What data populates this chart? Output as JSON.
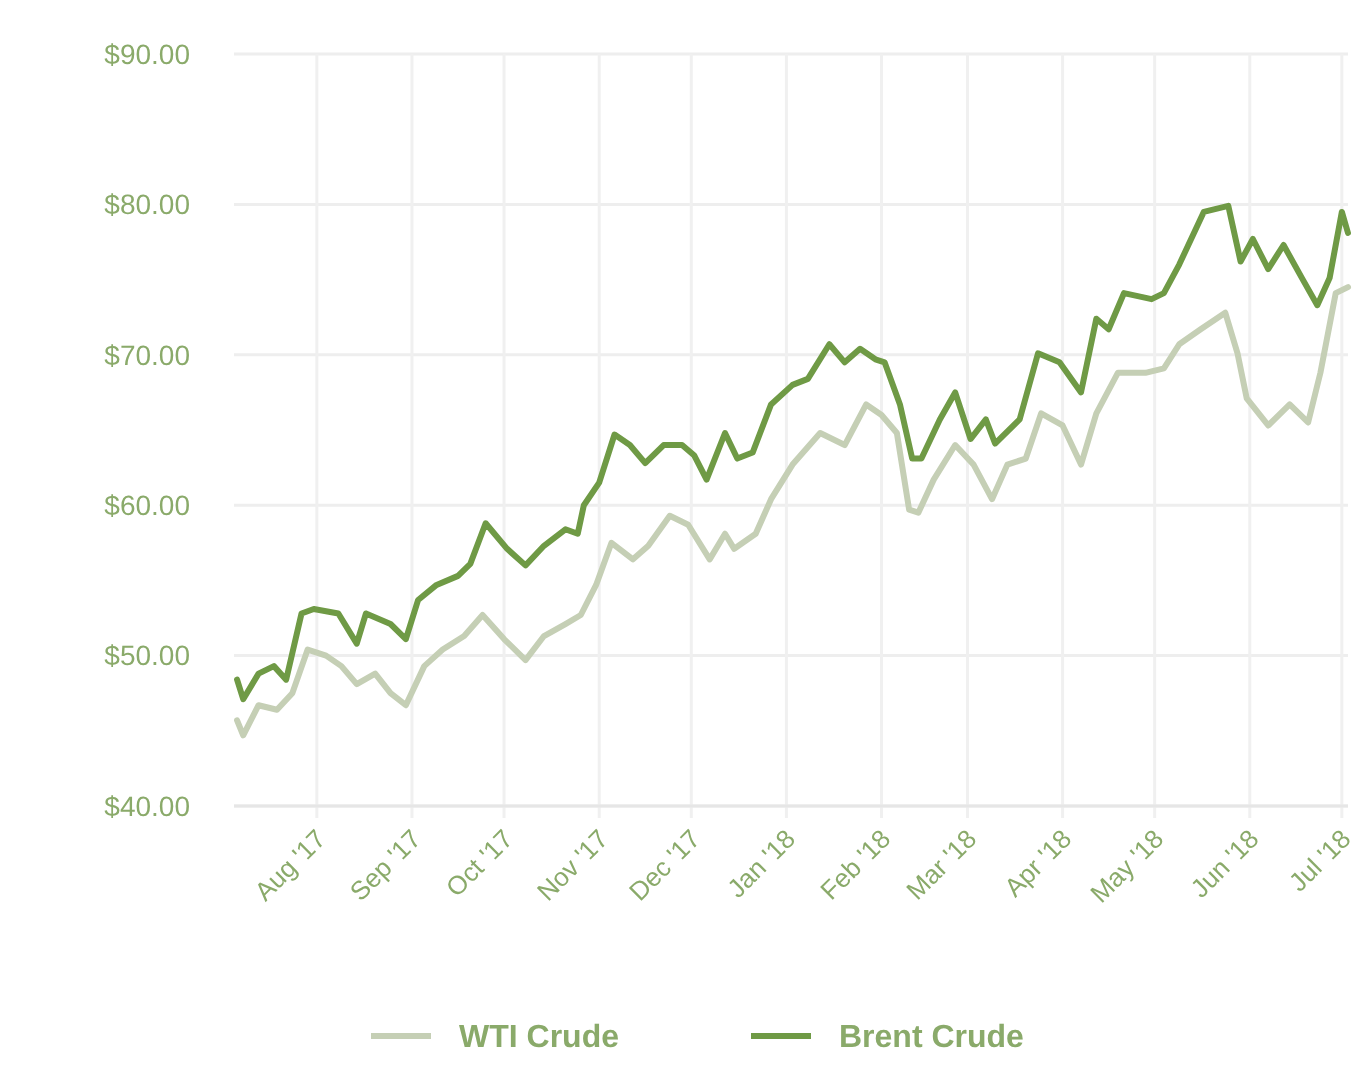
{
  "chart_data": {
    "type": "line",
    "xlim": [
      "2017-07-05",
      "2018-07-03"
    ],
    "ylim": [
      40,
      90
    ],
    "yticks": [
      {
        "value": 40,
        "label": "$40.00"
      },
      {
        "value": 50,
        "label": "$50.00"
      },
      {
        "value": 60,
        "label": "$60.00"
      },
      {
        "value": 70,
        "label": "$70.00"
      },
      {
        "value": 80,
        "label": "$80.00"
      },
      {
        "value": 90,
        "label": "$90.00"
      }
    ],
    "xticks": [
      {
        "value": "2017-08-01",
        "label": "Aug '17"
      },
      {
        "value": "2017-09-01",
        "label": "Sep '17"
      },
      {
        "value": "2017-10-01",
        "label": "Oct '17"
      },
      {
        "value": "2017-11-01",
        "label": "Nov '17"
      },
      {
        "value": "2017-12-01",
        "label": "Dec '17"
      },
      {
        "value": "2018-01-01",
        "label": "Jan '18"
      },
      {
        "value": "2018-02-01",
        "label": "Feb '18"
      },
      {
        "value": "2018-03-01",
        "label": "Mar '18"
      },
      {
        "value": "2018-04-01",
        "label": "Apr '18"
      },
      {
        "value": "2018-05-01",
        "label": "May '18"
      },
      {
        "value": "2018-06-01",
        "label": "Jun '18"
      },
      {
        "value": "2018-07-01",
        "label": "Jul '18"
      }
    ],
    "grid": true,
    "legend": "bottom",
    "marker": "none",
    "line_style": "solid",
    "series": [
      {
        "name": "WTI Crude",
        "color": "#c5cfb5",
        "x": [
          "2017-07-06",
          "2017-07-08",
          "2017-07-13",
          "2017-07-19",
          "2017-07-24",
          "2017-07-29",
          "2017-08-04",
          "2017-08-09",
          "2017-08-14",
          "2017-08-20",
          "2017-08-25",
          "2017-08-30",
          "2017-09-05",
          "2017-09-11",
          "2017-09-18",
          "2017-09-24",
          "2017-10-01",
          "2017-10-08",
          "2017-10-14",
          "2017-10-21",
          "2017-10-26",
          "2017-10-31",
          "2017-11-05",
          "2017-11-12",
          "2017-11-17",
          "2017-11-24",
          "2017-11-30",
          "2017-12-07",
          "2017-12-12",
          "2017-12-15",
          "2017-12-22",
          "2017-12-27",
          "2018-01-03",
          "2018-01-12",
          "2018-01-20",
          "2018-01-27",
          "2018-02-01",
          "2018-02-06",
          "2018-02-10",
          "2018-02-13",
          "2018-02-18",
          "2018-02-25",
          "2018-03-03",
          "2018-03-09",
          "2018-03-14",
          "2018-03-20",
          "2018-03-25",
          "2018-04-01",
          "2018-04-07",
          "2018-04-12",
          "2018-04-19",
          "2018-04-28",
          "2018-05-04",
          "2018-05-09",
          "2018-05-16",
          "2018-05-24",
          "2018-05-28",
          "2018-05-31",
          "2018-06-07",
          "2018-06-14",
          "2018-06-20",
          "2018-06-24",
          "2018-06-29",
          "2018-07-03"
        ],
        "values": [
          45.7,
          44.7,
          46.7,
          46.4,
          47.5,
          50.4,
          50.0,
          49.3,
          48.1,
          48.8,
          47.5,
          46.7,
          49.3,
          50.4,
          51.3,
          52.7,
          51.1,
          49.7,
          51.3,
          52.1,
          52.7,
          54.7,
          57.5,
          56.4,
          57.3,
          59.3,
          58.7,
          56.4,
          58.1,
          57.1,
          58.1,
          60.4,
          62.7,
          64.8,
          64.0,
          66.7,
          66.0,
          64.8,
          59.7,
          59.5,
          61.7,
          64.0,
          62.7,
          60.4,
          62.7,
          63.1,
          66.1,
          65.3,
          62.7,
          66.1,
          68.8,
          68.8,
          69.1,
          70.7,
          71.7,
          72.8,
          70.1,
          67.1,
          65.3,
          66.7,
          65.5,
          68.8,
          74.1,
          74.5
        ]
      },
      {
        "name": "Brent Crude",
        "color": "#6f9a45",
        "x": [
          "2017-07-06",
          "2017-07-08",
          "2017-07-13",
          "2017-07-18",
          "2017-07-22",
          "2017-07-27",
          "2017-07-31",
          "2017-08-08",
          "2017-08-14",
          "2017-08-17",
          "2017-08-25",
          "2017-08-30",
          "2017-09-03",
          "2017-09-09",
          "2017-09-16",
          "2017-09-20",
          "2017-09-25",
          "2017-10-02",
          "2017-10-08",
          "2017-10-14",
          "2017-10-21",
          "2017-10-25",
          "2017-10-27",
          "2017-11-01",
          "2017-11-06",
          "2017-11-11",
          "2017-11-16",
          "2017-11-22",
          "2017-11-28",
          "2017-12-02",
          "2017-12-06",
          "2017-12-12",
          "2017-12-16",
          "2017-12-21",
          "2017-12-27",
          "2018-01-03",
          "2018-01-08",
          "2018-01-15",
          "2018-01-20",
          "2018-01-25",
          "2018-01-30",
          "2018-02-02",
          "2018-02-07",
          "2018-02-11",
          "2018-02-14",
          "2018-02-20",
          "2018-02-25",
          "2018-03-02",
          "2018-03-07",
          "2018-03-10",
          "2018-03-18",
          "2018-03-24",
          "2018-03-31",
          "2018-04-07",
          "2018-04-12",
          "2018-04-16",
          "2018-04-21",
          "2018-04-30",
          "2018-05-04",
          "2018-05-09",
          "2018-05-17",
          "2018-05-25",
          "2018-05-29",
          "2018-06-02",
          "2018-06-07",
          "2018-06-12",
          "2018-06-18",
          "2018-06-23",
          "2018-06-27",
          "2018-07-01",
          "2018-07-03"
        ],
        "values": [
          48.4,
          47.1,
          48.8,
          49.3,
          48.4,
          52.8,
          53.1,
          52.8,
          50.8,
          52.8,
          52.1,
          51.1,
          53.7,
          54.7,
          55.3,
          56.1,
          58.8,
          57.1,
          56.0,
          57.3,
          58.4,
          58.1,
          60.0,
          61.5,
          64.7,
          64.0,
          62.8,
          64.0,
          64.0,
          63.3,
          61.7,
          64.8,
          63.1,
          63.5,
          66.7,
          68.0,
          68.4,
          70.7,
          69.5,
          70.4,
          69.7,
          69.5,
          66.7,
          63.1,
          63.1,
          65.7,
          67.5,
          64.4,
          65.7,
          64.1,
          65.7,
          70.1,
          69.5,
          67.5,
          72.4,
          71.7,
          74.1,
          73.7,
          74.1,
          76.0,
          79.5,
          79.9,
          76.2,
          77.7,
          75.7,
          77.3,
          75.1,
          73.3,
          75.1,
          79.5,
          78.1
        ]
      }
    ]
  }
}
